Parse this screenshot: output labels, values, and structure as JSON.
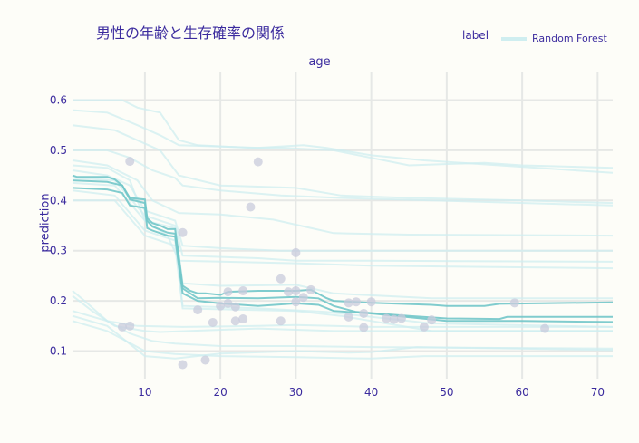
{
  "chart_data": {
    "type": "line",
    "title": "男性の年齢と生存確率の関係",
    "xlabel": "age",
    "ylabel": "prediction",
    "xlim": [
      0.4,
      72
    ],
    "ylim": [
      0.045,
      0.655
    ],
    "xticks": [
      10,
      20,
      30,
      40,
      50,
      60,
      70
    ],
    "yticks": [
      0.1,
      0.2,
      0.3,
      0.4,
      0.5,
      0.6
    ],
    "grid": true,
    "legend": {
      "title": "label",
      "placement": "top-right",
      "entries": [
        "Random Forest"
      ]
    },
    "colors": {
      "ice_line": "#cfeef0",
      "pdp_line": "#72c7c9",
      "point": "#c8cbdc",
      "text": "#3b2b9e",
      "grid": "#e6e8e6"
    },
    "ice_curves": [
      [
        [
          0.4,
          0.6
        ],
        [
          7,
          0.6
        ],
        [
          9,
          0.585
        ],
        [
          12,
          0.575
        ],
        [
          14.5,
          0.52
        ],
        [
          17,
          0.51
        ],
        [
          24,
          0.505
        ],
        [
          28,
          0.505
        ],
        [
          35,
          0.5
        ],
        [
          45,
          0.47
        ],
        [
          55,
          0.475
        ],
        [
          60,
          0.47
        ],
        [
          72,
          0.465
        ]
      ],
      [
        [
          0.4,
          0.58
        ],
        [
          5,
          0.575
        ],
        [
          9,
          0.55
        ],
        [
          12,
          0.53
        ],
        [
          14.5,
          0.51
        ],
        [
          25,
          0.505
        ],
        [
          31,
          0.51
        ],
        [
          34,
          0.505
        ],
        [
          40,
          0.49
        ],
        [
          47,
          0.48
        ],
        [
          72,
          0.455
        ]
      ],
      [
        [
          0.4,
          0.55
        ],
        [
          6,
          0.54
        ],
        [
          9,
          0.52
        ],
        [
          12,
          0.5
        ],
        [
          14.5,
          0.45
        ],
        [
          20,
          0.43
        ],
        [
          30,
          0.425
        ],
        [
          36,
          0.41
        ],
        [
          45,
          0.405
        ],
        [
          60,
          0.4
        ],
        [
          72,
          0.395
        ]
      ],
      [
        [
          0.4,
          0.5
        ],
        [
          5,
          0.5
        ],
        [
          8,
          0.485
        ],
        [
          11,
          0.46
        ],
        [
          14,
          0.445
        ],
        [
          15,
          0.43
        ],
        [
          20,
          0.42
        ],
        [
          28,
          0.41
        ],
        [
          36,
          0.405
        ],
        [
          72,
          0.39
        ]
      ],
      [
        [
          0.4,
          0.48
        ],
        [
          5,
          0.47
        ],
        [
          9,
          0.44
        ],
        [
          11,
          0.4
        ],
        [
          14.5,
          0.375
        ],
        [
          20,
          0.372
        ],
        [
          27,
          0.362
        ],
        [
          35,
          0.335
        ],
        [
          45,
          0.332
        ],
        [
          72,
          0.33
        ]
      ],
      [
        [
          0.4,
          0.46
        ],
        [
          5,
          0.45
        ],
        [
          8,
          0.43
        ],
        [
          10,
          0.38
        ],
        [
          14,
          0.36
        ],
        [
          15,
          0.31
        ],
        [
          20,
          0.305
        ],
        [
          28,
          0.3
        ],
        [
          35,
          0.3
        ],
        [
          72,
          0.3
        ]
      ],
      [
        [
          0.4,
          0.445
        ],
        [
          6,
          0.44
        ],
        [
          10,
          0.37
        ],
        [
          14,
          0.35
        ],
        [
          15,
          0.29
        ],
        [
          25,
          0.285
        ],
        [
          30,
          0.28
        ],
        [
          40,
          0.28
        ],
        [
          72,
          0.278
        ]
      ],
      [
        [
          0.4,
          0.435
        ],
        [
          6,
          0.43
        ],
        [
          10,
          0.36
        ],
        [
          13,
          0.33
        ],
        [
          14.5,
          0.28
        ],
        [
          30,
          0.275
        ],
        [
          40,
          0.27
        ],
        [
          72,
          0.265
        ]
      ],
      [
        [
          0.4,
          0.47
        ],
        [
          5,
          0.465
        ],
        [
          8,
          0.44
        ],
        [
          10,
          0.36
        ],
        [
          14,
          0.345
        ],
        [
          15,
          0.235
        ],
        [
          20,
          0.23
        ],
        [
          30,
          0.232
        ],
        [
          35,
          0.215
        ],
        [
          48,
          0.205
        ],
        [
          72,
          0.205
        ]
      ],
      [
        [
          0.4,
          0.42
        ],
        [
          6,
          0.41
        ],
        [
          10,
          0.34
        ],
        [
          14,
          0.32
        ],
        [
          15,
          0.19
        ],
        [
          25,
          0.185
        ],
        [
          34,
          0.178
        ],
        [
          48,
          0.155
        ],
        [
          72,
          0.148
        ]
      ],
      [
        [
          0.4,
          0.4
        ],
        [
          6,
          0.4
        ],
        [
          10,
          0.33
        ],
        [
          14,
          0.31
        ],
        [
          15,
          0.185
        ],
        [
          30,
          0.18
        ],
        [
          36,
          0.17
        ],
        [
          48,
          0.14
        ],
        [
          72,
          0.14
        ]
      ],
      [
        [
          0.4,
          0.22
        ],
        [
          2,
          0.2
        ],
        [
          5,
          0.16
        ],
        [
          9,
          0.15
        ],
        [
          15,
          0.148
        ],
        [
          25,
          0.15
        ],
        [
          30,
          0.152
        ],
        [
          40,
          0.148
        ],
        [
          72,
          0.148
        ]
      ],
      [
        [
          0.4,
          0.21
        ],
        [
          3,
          0.18
        ],
        [
          6,
          0.15
        ],
        [
          10,
          0.14
        ],
        [
          12,
          0.138
        ],
        [
          25,
          0.145
        ],
        [
          35,
          0.14
        ],
        [
          72,
          0.14
        ]
      ],
      [
        [
          0.4,
          0.18
        ],
        [
          5,
          0.16
        ],
        [
          8,
          0.135
        ],
        [
          11,
          0.12
        ],
        [
          14,
          0.115
        ],
        [
          20,
          0.11
        ],
        [
          30,
          0.11
        ],
        [
          40,
          0.108
        ],
        [
          72,
          0.105
        ]
      ],
      [
        [
          0.4,
          0.17
        ],
        [
          5,
          0.15
        ],
        [
          10,
          0.09
        ],
        [
          14,
          0.085
        ],
        [
          20,
          0.095
        ],
        [
          30,
          0.1
        ],
        [
          37,
          0.097
        ],
        [
          40,
          0.098
        ],
        [
          46,
          0.108
        ],
        [
          72,
          0.102
        ]
      ],
      [
        [
          0.4,
          0.16
        ],
        [
          5,
          0.14
        ],
        [
          10,
          0.1
        ],
        [
          14,
          0.094
        ],
        [
          20,
          0.09
        ],
        [
          30,
          0.088
        ],
        [
          36,
          0.086
        ],
        [
          40,
          0.085
        ],
        [
          47,
          0.09
        ],
        [
          72,
          0.09
        ]
      ]
    ],
    "pdp_curves": [
      [
        [
          0.4,
          0.45
        ],
        [
          1,
          0.447
        ],
        [
          5,
          0.447
        ],
        [
          6,
          0.442
        ],
        [
          7,
          0.43
        ],
        [
          8,
          0.405
        ],
        [
          10,
          0.402
        ],
        [
          10.3,
          0.365
        ],
        [
          11,
          0.355
        ],
        [
          12,
          0.35
        ],
        [
          13,
          0.343
        ],
        [
          14,
          0.343
        ],
        [
          14.4,
          0.3
        ],
        [
          15,
          0.23
        ],
        [
          16,
          0.22
        ],
        [
          17,
          0.215
        ],
        [
          18,
          0.215
        ],
        [
          20,
          0.212
        ],
        [
          21,
          0.218
        ],
        [
          25,
          0.22
        ],
        [
          30,
          0.22
        ],
        [
          32,
          0.222
        ],
        [
          33,
          0.214
        ],
        [
          34,
          0.206
        ],
        [
          35,
          0.2
        ],
        [
          40,
          0.196
        ],
        [
          48,
          0.192
        ],
        [
          50,
          0.19
        ],
        [
          55,
          0.19
        ],
        [
          57,
          0.194
        ],
        [
          72,
          0.197
        ]
      ],
      [
        [
          0.4,
          0.44
        ],
        [
          5,
          0.437
        ],
        [
          7,
          0.43
        ],
        [
          8,
          0.402
        ],
        [
          10,
          0.395
        ],
        [
          10.3,
          0.36
        ],
        [
          11,
          0.348
        ],
        [
          13,
          0.336
        ],
        [
          14,
          0.334
        ],
        [
          14.4,
          0.29
        ],
        [
          15,
          0.225
        ],
        [
          17,
          0.205
        ],
        [
          20,
          0.206
        ],
        [
          25,
          0.205
        ],
        [
          30,
          0.208
        ],
        [
          33,
          0.205
        ],
        [
          35,
          0.19
        ],
        [
          38,
          0.178
        ],
        [
          45,
          0.17
        ],
        [
          50,
          0.165
        ],
        [
          57,
          0.164
        ],
        [
          58,
          0.168
        ],
        [
          72,
          0.168
        ]
      ],
      [
        [
          0.4,
          0.425
        ],
        [
          5,
          0.422
        ],
        [
          7,
          0.415
        ],
        [
          8,
          0.39
        ],
        [
          10,
          0.385
        ],
        [
          10.3,
          0.345
        ],
        [
          11,
          0.34
        ],
        [
          13,
          0.33
        ],
        [
          14,
          0.328
        ],
        [
          14.4,
          0.28
        ],
        [
          15,
          0.215
        ],
        [
          17,
          0.2
        ],
        [
          20,
          0.195
        ],
        [
          25,
          0.19
        ],
        [
          30,
          0.195
        ],
        [
          33,
          0.192
        ],
        [
          35,
          0.18
        ],
        [
          40,
          0.175
        ],
        [
          50,
          0.16
        ],
        [
          60,
          0.16
        ],
        [
          72,
          0.158
        ]
      ]
    ],
    "points": [
      [
        7,
        0.148
      ],
      [
        8,
        0.15
      ],
      [
        8,
        0.478
      ],
      [
        15,
        0.336
      ],
      [
        15,
        0.073
      ],
      [
        17,
        0.182
      ],
      [
        18,
        0.082
      ],
      [
        19,
        0.157
      ],
      [
        20,
        0.19
      ],
      [
        21,
        0.218
      ],
      [
        21,
        0.195
      ],
      [
        22,
        0.16
      ],
      [
        22,
        0.188
      ],
      [
        23,
        0.164
      ],
      [
        23,
        0.22
      ],
      [
        24,
        0.387
      ],
      [
        25,
        0.477
      ],
      [
        28,
        0.244
      ],
      [
        28,
        0.16
      ],
      [
        29,
        0.218
      ],
      [
        30,
        0.296
      ],
      [
        30,
        0.198
      ],
      [
        30,
        0.22
      ],
      [
        31,
        0.207
      ],
      [
        32,
        0.222
      ],
      [
        37,
        0.196
      ],
      [
        37,
        0.168
      ],
      [
        38,
        0.198
      ],
      [
        39,
        0.147
      ],
      [
        39,
        0.175
      ],
      [
        40,
        0.198
      ],
      [
        42,
        0.165
      ],
      [
        43,
        0.163
      ],
      [
        44,
        0.165
      ],
      [
        47,
        0.148
      ],
      [
        48,
        0.162
      ],
      [
        59,
        0.196
      ],
      [
        63,
        0.145
      ]
    ]
  }
}
